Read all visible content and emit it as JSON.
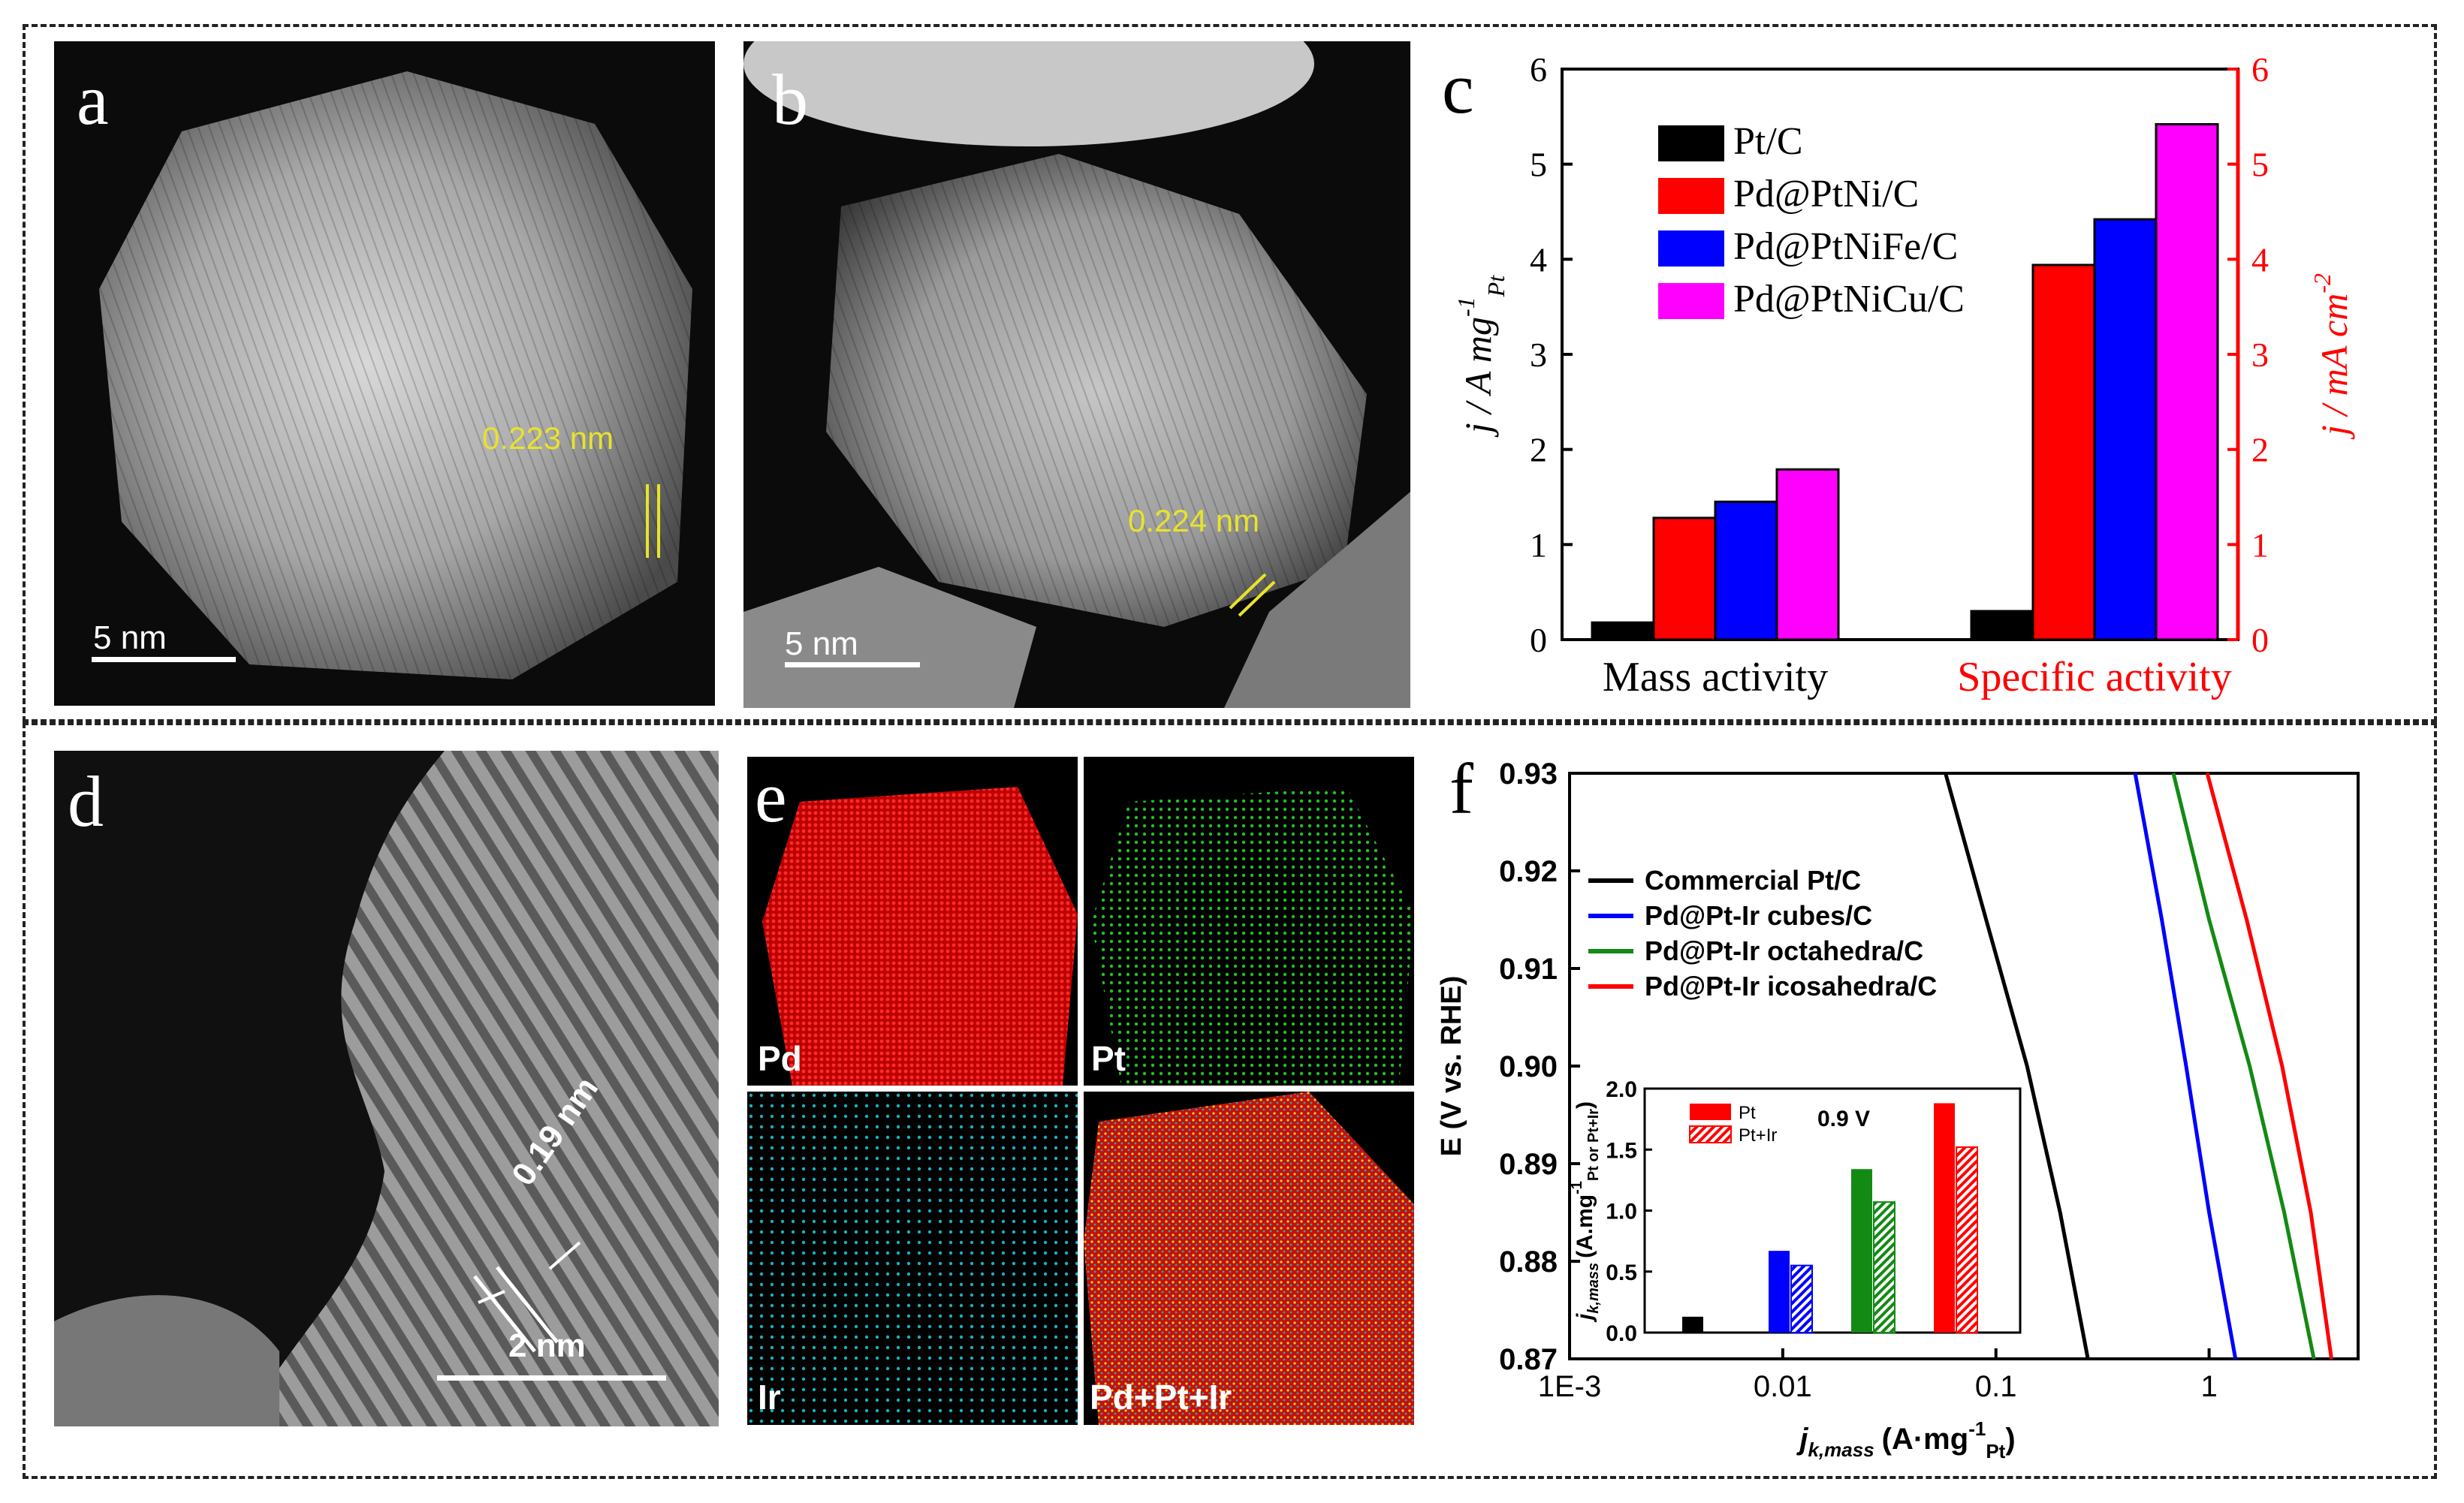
{
  "panels": {
    "a": {
      "label": "a",
      "scale": "5 nm",
      "annotation": "0.223 nm"
    },
    "b": {
      "label": "b",
      "scale": "5 nm",
      "annotation": "0.224 nm"
    },
    "c": {
      "label": "c"
    },
    "d": {
      "label": "d",
      "scale": "2 nm",
      "annotation": "0.19 nm"
    },
    "e": {
      "label": "e",
      "maps": [
        "Pd",
        "Pt",
        "Ir",
        "Pd+Pt+Ir"
      ]
    },
    "f": {
      "label": "f"
    }
  },
  "colors": {
    "black": "#000000",
    "red": "#ff0000",
    "blue": "#0000ff",
    "magenta": "#ff00ff",
    "green": "#138a13",
    "annotation": "#e8e32a"
  },
  "chart_data": [
    {
      "id": "c",
      "type": "bar",
      "categories": [
        "Mass activity",
        "Specific activity"
      ],
      "series": [
        {
          "name": "Pt/C",
          "values": [
            0.18,
            0.3
          ],
          "color": "#000000"
        },
        {
          "name": "Pd@PtNi/C",
          "values": [
            1.28,
            3.94
          ],
          "color": "#ff0000"
        },
        {
          "name": "Pd@PtNiFe/C",
          "values": [
            1.45,
            4.42
          ],
          "color": "#0000ff"
        },
        {
          "name": "Pd@PtNiCu/C",
          "values": [
            1.79,
            5.42
          ],
          "color": "#ff00ff"
        }
      ],
      "ylabel_left_main": "j / A mg",
      "ylabel_left_sup": "-1",
      "ylabel_left_sub": "Pt",
      "ylabel_right": "j / mA cm",
      "ylabel_right_sup": "-2",
      "ylim": [
        0,
        6
      ],
      "yticks": [
        "0",
        "1",
        "2",
        "3",
        "4",
        "5",
        "6"
      ],
      "legend": "top-left"
    },
    {
      "id": "f",
      "type": "line",
      "xscale": "log",
      "xlim": [
        0.001,
        5
      ],
      "xticks": [
        "1E-3",
        "0.01",
        "0.1",
        "1"
      ],
      "ylim": [
        0.87,
        0.93
      ],
      "yticks": [
        "0.87",
        "0.88",
        "0.89",
        "0.90",
        "0.91",
        "0.92",
        "0.93"
      ],
      "ylabel": "E (V vs. RHE)",
      "xlabel": "j",
      "xlabel_sub": "k,mass",
      "xlabel_unit": "(A·mg",
      "xlabel_unit_sup": "-1",
      "xlabel_unit_sub": "Pt",
      "series": [
        {
          "name": "Commercial Pt/C",
          "color": "#000000",
          "x": [
            0.058,
            0.09,
            0.14,
            0.2,
            0.27
          ],
          "y": [
            0.93,
            0.915,
            0.9,
            0.885,
            0.87
          ]
        },
        {
          "name": "Pd@Pt-Ir cubes/C",
          "color": "#0000ff",
          "x": [
            0.45,
            0.6,
            0.78,
            1.0,
            1.33
          ],
          "y": [
            0.93,
            0.915,
            0.9,
            0.885,
            0.87
          ]
        },
        {
          "name": "Pd@Pt-Ir octahedra/C",
          "color": "#138a13",
          "x": [
            0.68,
            1.0,
            1.55,
            2.25,
            3.1
          ],
          "y": [
            0.93,
            0.915,
            0.9,
            0.885,
            0.87
          ]
        },
        {
          "name": "Pd@Pt-Ir icosahedra/C",
          "color": "#ff0000",
          "x": [
            0.98,
            1.5,
            2.2,
            3.0,
            3.75
          ],
          "y": [
            0.93,
            0.915,
            0.9,
            0.885,
            0.87
          ]
        }
      ],
      "legend": "top-left"
    },
    {
      "id": "f-inset",
      "type": "bar",
      "title": "0.9 V",
      "ylabel": "j",
      "ylabel_sub": "k,mass",
      "ylabel_unit": "(A.mg",
      "ylabel_unit_sup": "-1",
      "ylabel_unit_sub": "Pt or Pt+Ir",
      "ylim": [
        0,
        2.0
      ],
      "yticks": [
        "0.0",
        "0.5",
        "1.0",
        "1.5",
        "2.0"
      ],
      "legend": [
        "Pt",
        "Pt+Ir"
      ],
      "bars": [
        {
          "pt": 0.13,
          "ptir": null,
          "color": "#000000"
        },
        {
          "pt": 0.67,
          "ptir": 0.55,
          "color": "#0000ff"
        },
        {
          "pt": 1.34,
          "ptir": 1.07,
          "color": "#138a13"
        },
        {
          "pt": 1.88,
          "ptir": 1.52,
          "color": "#ff0000"
        }
      ]
    }
  ]
}
